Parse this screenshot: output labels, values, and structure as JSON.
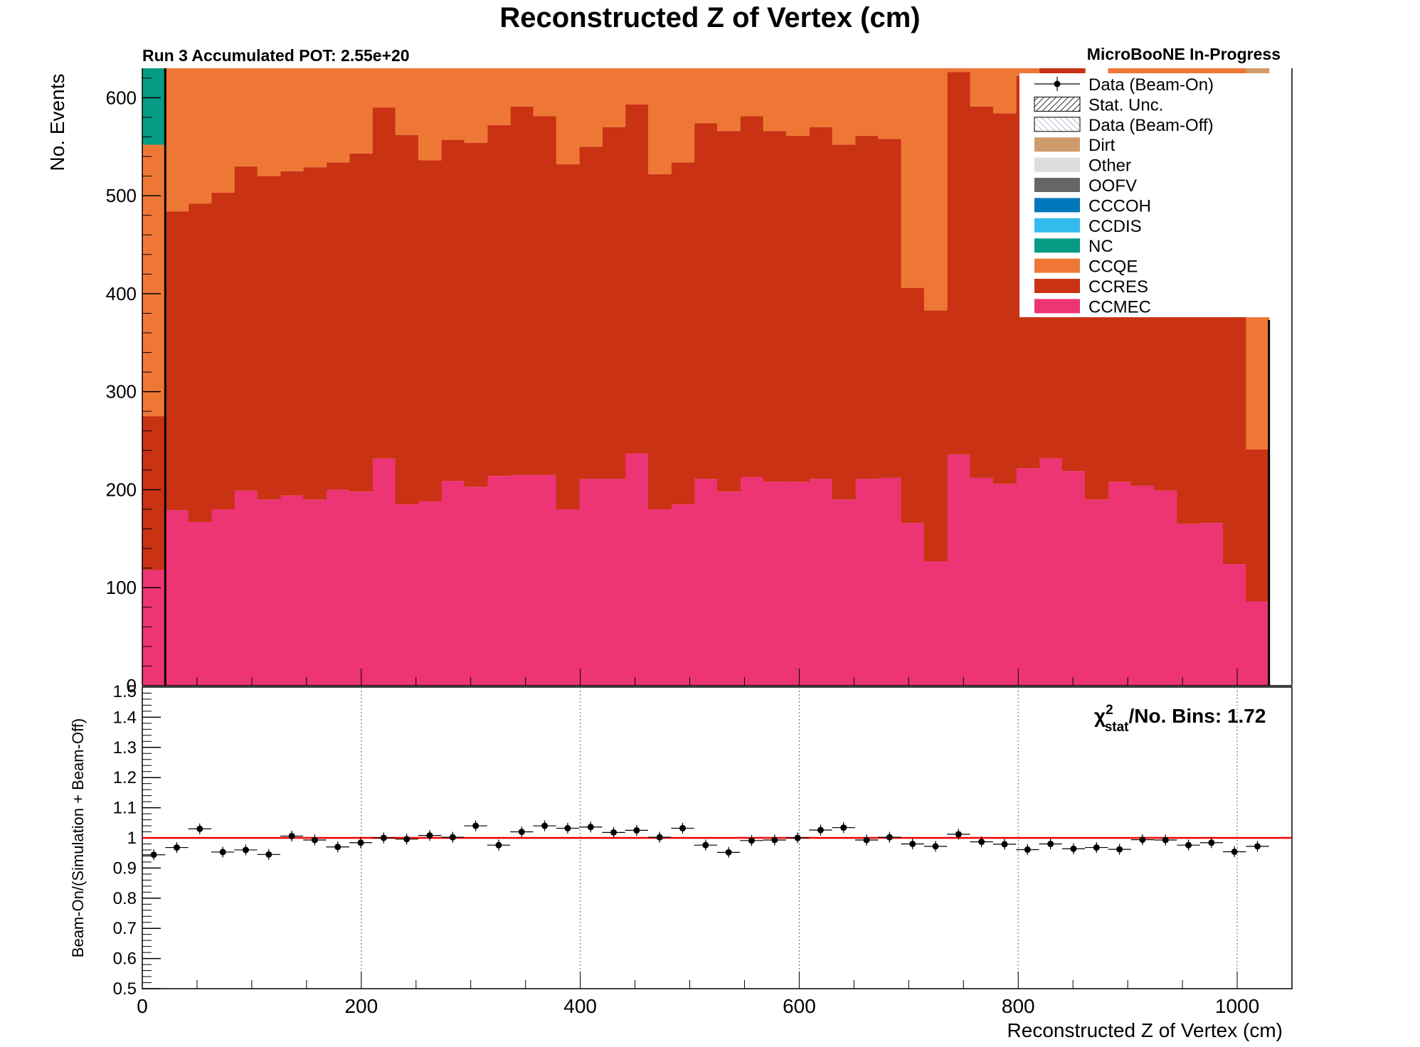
{
  "chart_data": [
    {
      "type": "stacked-bar",
      "title": "Reconstructed Z of Vertex (cm)",
      "subtitle_left": "Run 3 Accumulated POT: 2.55e+20",
      "subtitle_right": "MicroBooNE In-Progress",
      "ylabel": "No. Events",
      "xlim": [
        0,
        1050
      ],
      "ylim": [
        0,
        630
      ],
      "yticks": [
        100,
        200,
        300,
        400,
        500,
        600
      ],
      "y_zero_label": "0",
      "bin_edges": [
        0,
        21,
        42,
        63,
        84,
        105,
        126,
        147,
        168,
        189,
        210,
        231,
        252,
        273,
        294,
        315,
        336,
        357,
        378,
        399,
        420,
        441,
        462,
        483,
        504,
        525,
        546,
        567,
        588,
        609,
        630,
        651,
        672,
        693,
        714,
        735,
        756,
        777,
        798,
        819,
        840,
        861,
        882,
        903,
        924,
        945,
        966,
        987,
        1008,
        1029,
        1050
      ],
      "series": [
        {
          "name": "CCMEC",
          "color": "#ed3475",
          "values": [
            118,
            179,
            167,
            180,
            199,
            190,
            194,
            190,
            200,
            198,
            232,
            185,
            188,
            209,
            203,
            214,
            215,
            215,
            180,
            211,
            211,
            237,
            180,
            185,
            211,
            198,
            213,
            208,
            208,
            211,
            190,
            211,
            212,
            166,
            127,
            236,
            212,
            206,
            222,
            232,
            219,
            190,
            208,
            204,
            199,
            165,
            166,
            124,
            86,
            0
          ]
        },
        {
          "name": "CCRES",
          "color": "#c93213",
          "values": [
            157,
            305,
            325,
            323,
            331,
            330,
            331,
            339,
            334,
            345,
            358,
            377,
            348,
            348,
            351,
            358,
            376,
            366,
            352,
            339,
            359,
            356,
            342,
            349,
            363,
            368,
            368,
            358,
            353,
            359,
            362,
            350,
            346,
            240,
            256,
            390,
            379,
            378,
            400,
            410,
            420,
            390,
            380,
            396,
            395,
            410,
            399,
            370,
            155,
            0
          ]
        },
        {
          "name": "CCQE",
          "color": "#ee7735",
          "values": [
            277,
            146,
            138,
            127,
            100,
            110,
            105,
            101,
            96,
            87,
            40,
            68,
            94,
            73,
            76,
            58,
            39,
            49,
            98,
            80,
            60,
            37,
            108,
            96,
            56,
            64,
            49,
            64,
            69,
            60,
            78,
            69,
            72,
            224,
            247,
            4,
            39,
            46,
            8,
            0,
            0,
            40,
            42,
            30,
            36,
            55,
            65,
            136,
            381,
            0
          ]
        },
        {
          "name": "NC",
          "color": "#069b85",
          "values": [
            78,
            0,
            0,
            0,
            0,
            0,
            0,
            0,
            0,
            0,
            0,
            0,
            0,
            0,
            0,
            0,
            0,
            0,
            0,
            0,
            0,
            0,
            0,
            0,
            0,
            0,
            0,
            0,
            0,
            0,
            0,
            0,
            0,
            0,
            0,
            0,
            0,
            0,
            0,
            0,
            0,
            0,
            0,
            0,
            0,
            0,
            0,
            0,
            0,
            0
          ]
        },
        {
          "name": "CCDIS",
          "color": "#33bbee",
          "values": [
            0,
            0,
            0,
            0,
            0,
            0,
            0,
            0,
            0,
            0,
            0,
            0,
            0,
            0,
            0,
            0,
            0,
            0,
            0,
            0,
            0,
            0,
            0,
            0,
            0,
            0,
            0,
            0,
            0,
            0,
            0,
            0,
            0,
            0,
            0,
            0,
            0,
            0,
            0,
            0,
            0,
            0,
            0,
            0,
            0,
            0,
            0,
            0,
            0,
            0
          ]
        },
        {
          "name": "CCCOH",
          "color": "#0077bb",
          "values": [
            0,
            0,
            0,
            0,
            0,
            0,
            0,
            0,
            0,
            0,
            0,
            0,
            0,
            0,
            0,
            0,
            0,
            0,
            0,
            0,
            0,
            0,
            0,
            0,
            0,
            0,
            0,
            0,
            0,
            0,
            0,
            0,
            0,
            0,
            0,
            0,
            0,
            0,
            0,
            0,
            0,
            0,
            0,
            0,
            0,
            0,
            0,
            0,
            0,
            0
          ]
        },
        {
          "name": "OOFV",
          "color": "#666666",
          "values": [
            0,
            0,
            0,
            0,
            0,
            0,
            0,
            0,
            0,
            0,
            0,
            0,
            0,
            0,
            0,
            0,
            0,
            0,
            0,
            0,
            0,
            0,
            0,
            0,
            0,
            0,
            0,
            0,
            0,
            0,
            0,
            0,
            0,
            0,
            0,
            0,
            0,
            0,
            0,
            0,
            0,
            0,
            0,
            0,
            0,
            0,
            0,
            0,
            0,
            0
          ]
        },
        {
          "name": "Other",
          "color": "#dddddd",
          "values": [
            0,
            0,
            0,
            0,
            0,
            0,
            0,
            0,
            0,
            0,
            0,
            0,
            0,
            0,
            0,
            0,
            0,
            0,
            0,
            0,
            0,
            0,
            0,
            0,
            0,
            0,
            0,
            0,
            0,
            0,
            0,
            0,
            0,
            0,
            0,
            0,
            0,
            0,
            0,
            0,
            0,
            0,
            0,
            0,
            0,
            0,
            0,
            0,
            0,
            0
          ]
        },
        {
          "name": "Dirt",
          "color": "#d09b6a",
          "values": [
            0,
            0,
            0,
            0,
            0,
            0,
            0,
            0,
            0,
            0,
            0,
            0,
            0,
            0,
            0,
            0,
            0,
            0,
            0,
            0,
            0,
            0,
            0,
            0,
            0,
            0,
            0,
            0,
            0,
            0,
            0,
            0,
            0,
            0,
            0,
            0,
            0,
            0,
            0,
            0,
            0,
            0,
            0,
            0,
            0,
            0,
            0,
            0,
            10,
            0
          ]
        }
      ],
      "legend": {
        "placement": "top-right",
        "entries": [
          {
            "label": "Data (Beam-On)",
            "style": "marker"
          },
          {
            "label": "Stat. Unc.",
            "style": "hatch-dense"
          },
          {
            "label": "Data (Beam-Off)",
            "style": "hatch-light"
          },
          {
            "label": "Dirt",
            "style": "fill",
            "color": "#d09b6a"
          },
          {
            "label": "Other",
            "style": "fill",
            "color": "#dddddd"
          },
          {
            "label": "OOFV",
            "style": "fill",
            "color": "#666666"
          },
          {
            "label": "CCCOH",
            "style": "fill",
            "color": "#0077bb"
          },
          {
            "label": "CCDIS",
            "style": "fill",
            "color": "#33bbee"
          },
          {
            "label": "NC",
            "style": "fill",
            "color": "#069b85"
          },
          {
            "label": "CCQE",
            "style": "fill",
            "color": "#ee7735"
          },
          {
            "label": "CCRES",
            "style": "fill",
            "color": "#c93213"
          },
          {
            "label": "CCMEC",
            "style": "fill",
            "color": "#ed3475"
          }
        ]
      }
    },
    {
      "type": "scatter",
      "xlabel": "Reconstructed Z of Vertex (cm)",
      "ylabel": "Beam-On/(Simulation + Beam-Off)",
      "xlim": [
        0,
        1050
      ],
      "ylim": [
        0.5,
        1.5
      ],
      "xticks": [
        0,
        200,
        400,
        600,
        800,
        1000
      ],
      "yticks": [
        0.5,
        0.6,
        0.7,
        0.8,
        0.9,
        1,
        1.1,
        1.2,
        1.3,
        1.4
      ],
      "y_top_label": "1.5",
      "grid_x": true,
      "annotation": {
        "chi_symbol": "χ",
        "chi_sup": "2",
        "chi_sub": "stat",
        "text": "/No. Bins: 1.72"
      },
      "reference_line": {
        "y": 1.0,
        "color": "#ff0000"
      },
      "bin_width": 21,
      "x": [
        10.5,
        31.5,
        52.5,
        73.5,
        94.5,
        115.5,
        136.5,
        157.5,
        178.5,
        199.5,
        220.5,
        241.5,
        262.5,
        283.5,
        304.5,
        325.5,
        346.5,
        367.5,
        388.5,
        409.5,
        430.5,
        451.5,
        472.5,
        493.5,
        514.5,
        535.5,
        556.5,
        577.5,
        598.5,
        619.5,
        640.5,
        661.5,
        682.5,
        703.5,
        724.5,
        745.5,
        766.5,
        787.5,
        808.5,
        829.5,
        850.5,
        871.5,
        892.5,
        913.5,
        934.5,
        955.5,
        976.5,
        997.5,
        1018.5
      ],
      "y": [
        0.944,
        0.968,
        1.03,
        0.953,
        0.96,
        0.945,
        1.006,
        0.993,
        0.97,
        0.984,
        1.0,
        0.996,
        1.008,
        1.002,
        1.04,
        0.976,
        1.02,
        1.04,
        1.032,
        1.036,
        1.018,
        1.025,
        1.002,
        1.032,
        0.976,
        0.952,
        0.991,
        0.993,
        1.0,
        1.026,
        1.034,
        0.993,
        1.002,
        0.98,
        0.972,
        1.012,
        0.987,
        0.979,
        0.961,
        0.98,
        0.964,
        0.968,
        0.962,
        0.994,
        0.993,
        0.976,
        0.984,
        0.954,
        0.972
      ],
      "yerr": 0.018
    }
  ]
}
